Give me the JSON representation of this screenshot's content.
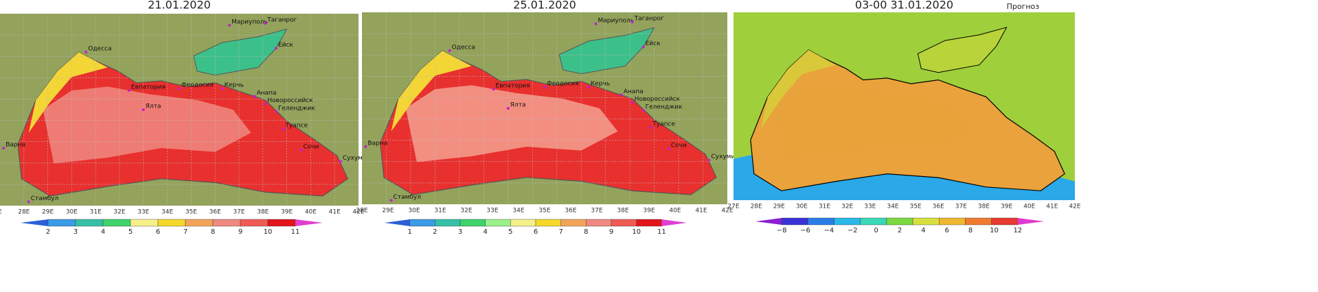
{
  "panels": [
    {
      "title": "21.01.2020",
      "cities": [
        "Одесса",
        "Мариуполь",
        "Таганрог",
        "Ейск",
        "Евпатория",
        "Феодосия",
        "Керчь",
        "Анапа",
        "Новороссийск",
        "Геленджик",
        "Ялта",
        "Туапсе",
        "Сочи",
        "Варна",
        "Сухуми",
        "Стамбул"
      ],
      "lon_labels": [
        "E",
        "28E",
        "29E",
        "30E",
        "31E",
        "32E",
        "33E",
        "34E",
        "35E",
        "36E",
        "37E",
        "38E",
        "39E",
        "40E",
        "41E",
        "42E"
      ],
      "colorbar_labels": [
        "2",
        "3",
        "4",
        "5",
        "6",
        "7",
        "8",
        "9",
        "10",
        "11"
      ]
    },
    {
      "title": "25.01.2020",
      "cities": [
        "Одесса",
        "Мариуполь",
        "Таганрог",
        "Ейск",
        "Евпатория",
        "Феодосия",
        "Керчь",
        "Анапа",
        "Новороссийск",
        "Геленджик",
        "Ялта",
        "Туапсе",
        "Сочи",
        "Варна",
        "Сухуми",
        "Стамбул"
      ],
      "lon_labels": [
        "28E",
        "29E",
        "30E",
        "31E",
        "32E",
        "33E",
        "34E",
        "35E",
        "36E",
        "37E",
        "38E",
        "39E",
        "40E",
        "41E",
        "42E"
      ],
      "colorbar_labels": [
        "1",
        "2",
        "3",
        "4",
        "5",
        "6",
        "7",
        "8",
        "9",
        "10",
        "11"
      ]
    },
    {
      "title": "03-00      31.01.2020",
      "subtitle": "Прогноз",
      "lon_labels": [
        "27E",
        "28E",
        "29E",
        "30E",
        "31E",
        "32E",
        "33E",
        "34E",
        "35E",
        "36E",
        "37E",
        "38E",
        "39E",
        "40E",
        "41E",
        "42E"
      ],
      "colorbar_labels": [
        "−8",
        "−6",
        "−4",
        "−2",
        "0",
        "2",
        "4",
        "6",
        "8",
        "10",
        "12"
      ]
    }
  ]
}
